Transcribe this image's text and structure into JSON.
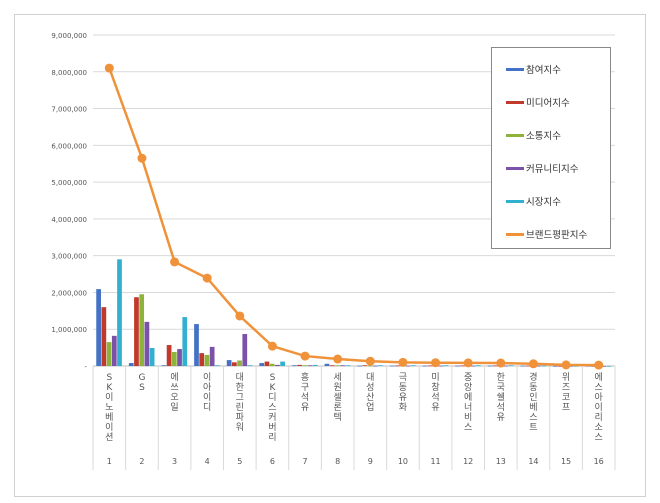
{
  "chart_data": {
    "type": "bar+line",
    "categories": [
      "SK이노베이션",
      "GS",
      "에쓰오일",
      "이아이디",
      "대한그린파워",
      "SK디스커버리",
      "흥구석유",
      "세원셀론텍",
      "대성산업",
      "극동유화",
      "미창석유",
      "중앙에너비스",
      "한국쉘석유",
      "경동인베스트",
      "위즈코프",
      "에스아이리소스"
    ],
    "ranks": [
      "1",
      "2",
      "3",
      "4",
      "5",
      "6",
      "7",
      "8",
      "9",
      "10",
      "11",
      "12",
      "13",
      "14",
      "15",
      "16"
    ],
    "ylim": [
      0,
      9000000
    ],
    "yticks": [
      "-",
      "1,000,000",
      "2,000,000",
      "3,000,000",
      "4,000,000",
      "5,000,000",
      "6,000,000",
      "7,000,000",
      "8,000,000",
      "9,000,000"
    ],
    "grid": true,
    "legend_placement": "right",
    "series": [
      {
        "name": "참여지수",
        "type": "bar",
        "color": "#4472c4",
        "values": [
          2090000,
          80000,
          20000,
          1140000,
          160000,
          80000,
          20000,
          60000,
          10000,
          10000,
          10000,
          10000,
          10000,
          10000,
          5000,
          5000
        ]
      },
      {
        "name": "미디어지수",
        "type": "bar",
        "color": "#c0392b",
        "values": [
          1600000,
          1870000,
          570000,
          350000,
          100000,
          120000,
          30000,
          20000,
          20000,
          15000,
          15000,
          15000,
          15000,
          10000,
          5000,
          3000
        ]
      },
      {
        "name": "소통지수",
        "type": "bar",
        "color": "#8db33a",
        "values": [
          650000,
          1950000,
          380000,
          300000,
          150000,
          60000,
          20000,
          20000,
          10000,
          10000,
          10000,
          10000,
          10000,
          10000,
          5000,
          3000
        ]
      },
      {
        "name": "커뮤니티지수",
        "type": "bar",
        "color": "#7a52a8",
        "values": [
          820000,
          1200000,
          460000,
          520000,
          870000,
          30000,
          20000,
          20000,
          10000,
          10000,
          10000,
          10000,
          10000,
          10000,
          5000,
          3000
        ]
      },
      {
        "name": "시장지수",
        "type": "bar",
        "color": "#31b0cf",
        "values": [
          2900000,
          490000,
          1330000,
          20000,
          20000,
          120000,
          30000,
          20000,
          20000,
          20000,
          20000,
          20000,
          20000,
          10000,
          5000,
          3000
        ]
      },
      {
        "name": "브랜드평판지수",
        "type": "line",
        "color": "#f0923a",
        "values": [
          8100000,
          5650000,
          2830000,
          2390000,
          1360000,
          540000,
          270000,
          190000,
          130000,
          100000,
          90000,
          85000,
          80000,
          60000,
          30000,
          25000
        ]
      }
    ]
  }
}
